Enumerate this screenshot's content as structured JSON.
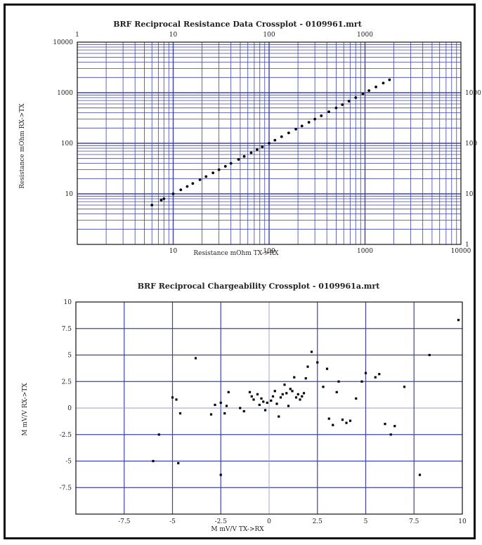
{
  "colors": {
    "grid": "#3c44a8",
    "plot_border": "#111111",
    "points": "#000000",
    "background": "#ffffff"
  },
  "chart_data": [
    {
      "type": "scatter",
      "title": "BRF Reciprocal Resistance Data Crossplot - 0109961.mrt",
      "xlabel": "Resistance mOhm TX->RX",
      "ylabel": "Resistance mOhm RX->TX",
      "x_scale": "log",
      "y_scale": "log",
      "xlim": [
        1,
        10000
      ],
      "ylim": [
        1,
        10000
      ],
      "grid": true,
      "x_ticks_bottom": [
        "10",
        "100",
        "1000",
        "10000"
      ],
      "x_ticks_top": [
        "1",
        "10",
        "100",
        "1000"
      ],
      "y_ticks_left": [
        "10",
        "100",
        "1000",
        "10000"
      ],
      "y_ticks_right": [
        "1",
        "10",
        "100",
        "1000"
      ],
      "series": [
        {
          "x": [
            6,
            7.5,
            8,
            10,
            12,
            14,
            16,
            19,
            22,
            26,
            30,
            35,
            40,
            48,
            55,
            65,
            75,
            85,
            100,
            115,
            135,
            160,
            190,
            220,
            260,
            300,
            350,
            420,
            500,
            580,
            680,
            800,
            950,
            1100,
            1300,
            1550,
            1800
          ],
          "y": [
            6,
            7.5,
            8,
            10,
            12,
            14,
            16,
            19,
            22,
            26,
            30,
            35,
            40,
            48,
            55,
            65,
            75,
            85,
            100,
            115,
            135,
            160,
            190,
            220,
            260,
            300,
            350,
            420,
            500,
            580,
            680,
            800,
            950,
            1100,
            1300,
            1550,
            1800
          ]
        }
      ]
    },
    {
      "type": "scatter",
      "title": "BRF Reciprocal Chargeability Crossplot - 0109961a.mrt",
      "xlabel": "M mV/V TX->RX",
      "ylabel": "M mV/V RX->TX",
      "xlim": [
        -10,
        10
      ],
      "ylim": [
        -10,
        10
      ],
      "grid": true,
      "x_ticks": [
        "-7.5",
        "-5",
        "-2.5",
        "0",
        "2.5",
        "5",
        "7.5",
        "10"
      ],
      "y_ticks": [
        "10",
        "7.5",
        "5",
        "2.5",
        "0",
        "-2.5",
        "-5",
        "-7.5"
      ],
      "series": [
        {
          "x": [
            -6.0,
            -5.7,
            -5.0,
            -4.8,
            -4.7,
            -4.6,
            -3.8,
            -3.0,
            -2.8,
            -2.5,
            -2.5,
            -2.3,
            -2.2,
            -2.1,
            -1.5,
            -1.3,
            -1.0,
            -0.9,
            -0.8,
            -0.6,
            -0.5,
            -0.4,
            -0.3,
            -0.2,
            -0.1,
            0.1,
            0.2,
            0.3,
            0.4,
            0.5,
            0.6,
            0.7,
            0.8,
            0.9,
            1.0,
            1.1,
            1.2,
            1.3,
            1.4,
            1.5,
            1.6,
            1.7,
            1.8,
            1.9,
            2.0,
            2.2,
            2.5,
            2.8,
            3.0,
            3.1,
            3.3,
            3.5,
            3.6,
            3.8,
            4.0,
            4.2,
            4.5,
            4.8,
            5.0,
            5.5,
            5.7,
            6.0,
            6.3,
            6.5,
            7.0,
            7.8,
            8.3,
            9.8
          ],
          "y": [
            -5.0,
            -2.5,
            1.0,
            0.8,
            -5.2,
            -0.5,
            4.7,
            -0.6,
            0.3,
            0.5,
            -6.3,
            -0.5,
            0.2,
            1.5,
            0.0,
            -0.3,
            1.5,
            1.1,
            0.8,
            1.3,
            0.3,
            0.9,
            0.6,
            -0.2,
            0.5,
            0.7,
            1.1,
            1.6,
            0.4,
            -0.8,
            1.0,
            1.3,
            2.2,
            1.4,
            0.2,
            1.8,
            1.6,
            2.9,
            1.0,
            1.3,
            0.8,
            1.1,
            1.4,
            2.8,
            3.9,
            5.3,
            4.3,
            2.0,
            3.7,
            -1.0,
            -1.6,
            1.5,
            2.5,
            -1.1,
            -1.4,
            -1.2,
            0.9,
            2.5,
            3.3,
            2.9,
            3.2,
            -1.5,
            -2.5,
            -1.7,
            2.0,
            -6.3,
            5.0,
            8.3
          ]
        }
      ]
    }
  ]
}
